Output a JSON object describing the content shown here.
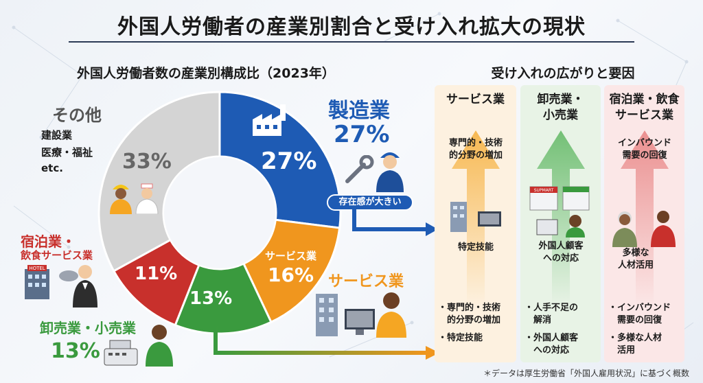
{
  "title": "外国人労働者の産業別割合と受け入れ拡大の現状",
  "chart_data": {
    "type": "pie",
    "title": "外国人労働者数の産業別構成比（2023年）",
    "categories": [
      "製造業",
      "サービス業",
      "卸売業・小売業",
      "宿泊業・飲食サービス業",
      "その他"
    ],
    "values": [
      27,
      16,
      13,
      11,
      33
    ],
    "unit": "%",
    "colors": [
      "#1e5bb4",
      "#f0961e",
      "#3a9a3e",
      "#c8302c",
      "#d4d4d4"
    ]
  },
  "labels": {
    "manufacturing_name": "製造業",
    "manufacturing_pct": "27%",
    "manufacturing_badge": "存在感が大きい",
    "service_inner": "サービス業",
    "service_name": "サービス業",
    "wholesale_name": "卸売業・小売業",
    "wholesale_pct": "13%",
    "hospitality_name1": "宿泊業・",
    "hospitality_name2": "飲食サービス業",
    "other_name": "その他",
    "other_items": [
      "建設業",
      "医療・福祉",
      "etc."
    ],
    "hotel_sign": "HOTEL"
  },
  "right": {
    "heading": "受け入れの広がりと要因",
    "columns": [
      {
        "head": [
          "サービス業"
        ],
        "upper": [
          "専門的・技術",
          "的分野の増加"
        ],
        "middle": [
          "特定技能"
        ],
        "bullets": [
          [
            "・専門的・技術",
            "　的分野の増加"
          ],
          [
            "・特定技能"
          ]
        ],
        "color": "#f5a623",
        "bg": "#fdf1e0"
      },
      {
        "head": [
          "卸売業・",
          "小売業"
        ],
        "store_sign": "SUPMART",
        "middle": [
          "外国人顧客",
          "への対応"
        ],
        "bullets": [
          [
            "・人手不足の",
            "　解消"
          ],
          [
            "・外国人顧客",
            "　への対応"
          ]
        ],
        "color": "#4caf50",
        "bg": "#e8f3e6"
      },
      {
        "head": [
          "宿泊業・飲食",
          "サービス業"
        ],
        "upper": [
          "インバウンド",
          "需要の回復"
        ],
        "middle": [
          "多様な",
          "人材活用"
        ],
        "bullets": [
          [
            "・インバウンド",
            "　需要の回復"
          ],
          [
            "・多様な人材",
            "　活用"
          ]
        ],
        "color": "#e57373",
        "bg": "#fbe7e7"
      }
    ]
  },
  "footnote": "＊データは厚生労働省「外国人雇用状況」に基づく概数"
}
